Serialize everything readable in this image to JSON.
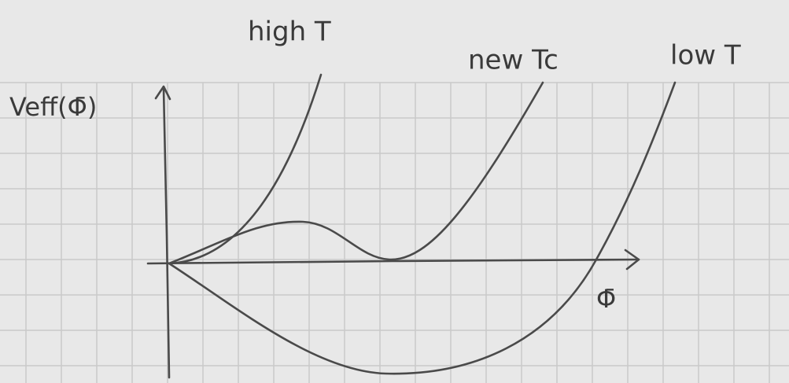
{
  "curves": {
    "high": "high T",
    "critical": "new Tc",
    "low": "low T"
  },
  "axes": {
    "y": "Veff(Φ̄)",
    "x": "Φ̄"
  }
}
